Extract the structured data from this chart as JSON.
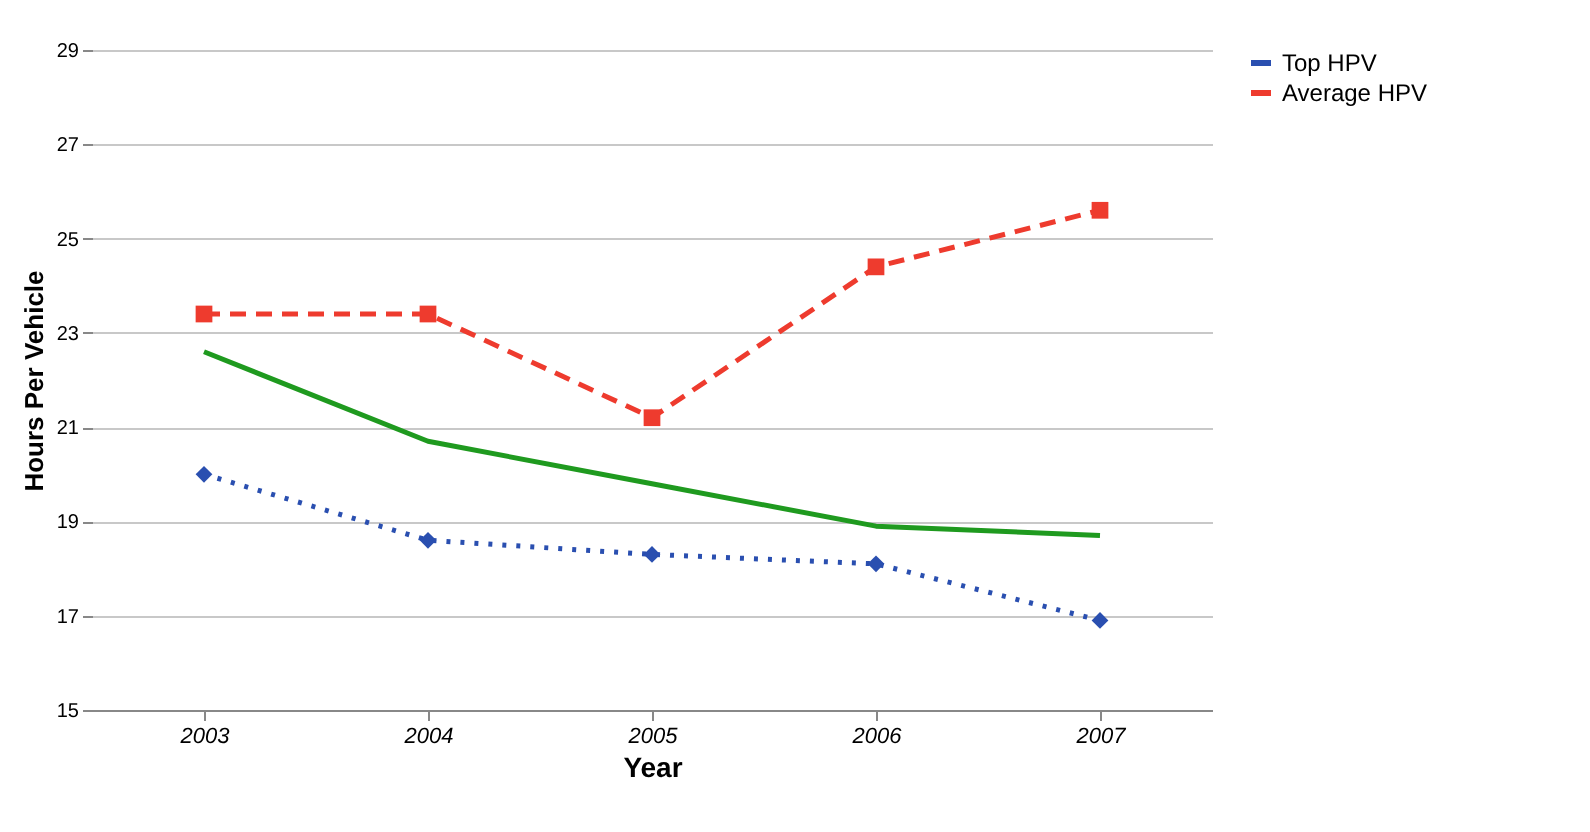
{
  "chart_data": {
    "type": "line",
    "xlabel": "Year",
    "ylabel": "Hours Per Vehicle",
    "categories": [
      "2003",
      "2004",
      "2005",
      "2006",
      "2007"
    ],
    "series": [
      {
        "color": "#1f9a1f",
        "values": [
          22.6,
          20.7,
          19.8,
          18.9,
          18.7
        ],
        "line_style": "solid",
        "marker": "none"
      },
      {
        "name": "Top HPV",
        "color": "#2a4fb0",
        "values": [
          20.0,
          18.6,
          18.3,
          18.1,
          16.9
        ],
        "line_style": "dotted",
        "marker": "diamond"
      },
      {
        "name": "Average HPV",
        "color": "#ee3b2e",
        "values": [
          23.4,
          23.4,
          21.2,
          24.4,
          25.6
        ],
        "line_style": "dashed",
        "marker": "square"
      }
    ],
    "ylim": [
      15,
      29
    ],
    "yticks": [
      15,
      17,
      19,
      21,
      23,
      25,
      27,
      29
    ],
    "grid": "y",
    "legend": "right"
  }
}
